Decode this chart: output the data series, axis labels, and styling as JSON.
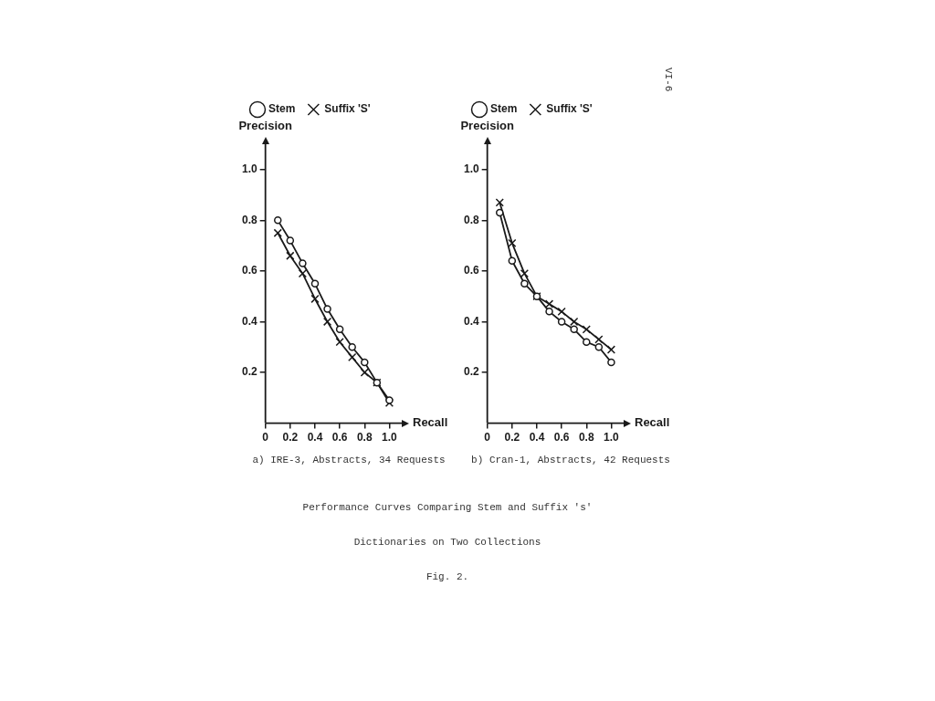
{
  "chart_data": [
    {
      "type": "line",
      "title": "a) IRE-3, Abstracts, 34 Requests",
      "xlabel": "Recall",
      "ylabel": "Precision",
      "x": [
        0.1,
        0.2,
        0.3,
        0.4,
        0.5,
        0.6,
        0.7,
        0.8,
        0.9,
        1.0
      ],
      "series": [
        {
          "name": "Stem",
          "color": "#1a1a1a",
          "marker": "circle",
          "values": [
            0.8,
            0.72,
            0.63,
            0.55,
            0.45,
            0.37,
            0.3,
            0.24,
            0.16,
            0.09
          ]
        },
        {
          "name": "Suffix 'S'",
          "color": "#1a1a1a",
          "marker": "cross",
          "values": [
            0.75,
            0.66,
            0.59,
            0.49,
            0.4,
            0.32,
            0.26,
            0.2,
            0.16,
            0.08
          ]
        }
      ],
      "xlim": [
        0,
        1.1
      ],
      "xticks": [
        0,
        0.2,
        0.4,
        0.6,
        0.8,
        {
          "value": 1,
          "label": "1.0"
        }
      ],
      "ylim": [
        0,
        1.1
      ],
      "yticks": [
        0.2,
        0.4,
        0.6,
        0.8,
        {
          "value": 1,
          "label": "1.0"
        }
      ],
      "grid": false,
      "legend": "top left",
      "line_style": "solid",
      "annotations": [
        "VI-6"
      ]
    },
    {
      "type": "line",
      "title": "b) Cran-1, Abstracts, 42 Requests",
      "xlabel": "Recall",
      "ylabel": "Precision",
      "x": [
        0.1,
        0.2,
        0.3,
        0.4,
        0.5,
        0.6,
        0.7,
        0.8,
        0.9,
        1.0
      ],
      "series": [
        {
          "name": "Stem",
          "color": "#1a1a1a",
          "marker": "circle",
          "values": [
            0.83,
            0.64,
            0.55,
            0.5,
            0.44,
            0.4,
            0.37,
            0.32,
            0.3,
            0.24
          ]
        },
        {
          "name": "Suffix 'S'",
          "color": "#1a1a1a",
          "marker": "cross",
          "values": [
            0.87,
            0.71,
            0.59,
            0.5,
            0.47,
            0.44,
            0.4,
            0.37,
            0.33,
            0.29
          ]
        }
      ],
      "xlim": [
        0,
        1.1
      ],
      "xticks": [
        0,
        0.2,
        0.4,
        0.6,
        0.8,
        {
          "value": 1,
          "label": "1.0"
        }
      ],
      "ylim": [
        0,
        1.1
      ],
      "yticks": [
        0.2,
        0.4,
        0.6,
        0.8,
        {
          "value": 1,
          "label": "1.0"
        }
      ],
      "grid": false,
      "legend": "top left",
      "line_style": "solid",
      "annotations": [
        "Performance Curves Comparing Stem and Suffix 's'",
        "Dictionaries on Two Collections",
        "Fig. 2."
      ]
    }
  ]
}
